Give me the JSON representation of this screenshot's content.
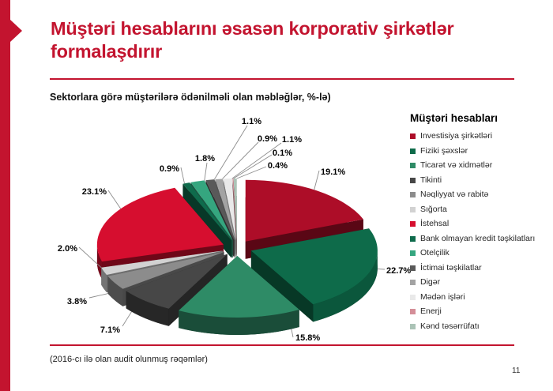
{
  "slide": {
    "title_lines": [
      "Müştəri hesablarını əsasən korporativ şirkətlər",
      "formalaşdırır"
    ],
    "footnote": "(2016-cı ilə olan audit olunmuş rəqəmlər)",
    "page_number": "11",
    "accent_color": "#C3142F"
  },
  "chart_data": {
    "type": "pie",
    "style": "3d-exploded",
    "title": "Sektorlara görə müştərilərə ödənilməli olan məbləğlər, %-lə)",
    "legend_title": "Müştəri hesabları",
    "legend_position": "right",
    "unit": "%",
    "data_labels": "outside-with-leader-lines",
    "series": [
      {
        "label": "Investisiya şirkətləri",
        "value": 19.1,
        "color": "#AD0D28"
      },
      {
        "label": "Fiziki şəxslər",
        "value": 22.7,
        "color": "#0E6B4A"
      },
      {
        "label": "Ticarət və xidmətlər",
        "value": 15.8,
        "color": "#2E8B66"
      },
      {
        "label": "Tikinti",
        "value": 7.1,
        "color": "#474747"
      },
      {
        "label": "Nəqliyyat və rabitə",
        "value": 3.8,
        "color": "#8C8C8C"
      },
      {
        "label": "Sığorta",
        "value": 2.0,
        "color": "#D2D2D2"
      },
      {
        "label": "İstehsal",
        "value": 23.1,
        "color": "#D60E2F"
      },
      {
        "label": "Bank olmayan kredit təşkilatları",
        "value": 0.9,
        "color": "#0F6B4C"
      },
      {
        "label": "Otelçilik",
        "value": 1.8,
        "color": "#35A67F"
      },
      {
        "label": "İctimai təşkilatlar",
        "value": 1.1,
        "color": "#595959"
      },
      {
        "label": "Digər",
        "value": 0.9,
        "color": "#A3A3A3"
      },
      {
        "label": "Mədən işləri",
        "value": 1.1,
        "color": "#E9E9E9"
      },
      {
        "label": "Enerji",
        "value": 0.1,
        "color": "#D48E98"
      },
      {
        "label": "Kənd təsərrüfatı",
        "value": 0.4,
        "color": "#ABC3B6"
      }
    ]
  }
}
